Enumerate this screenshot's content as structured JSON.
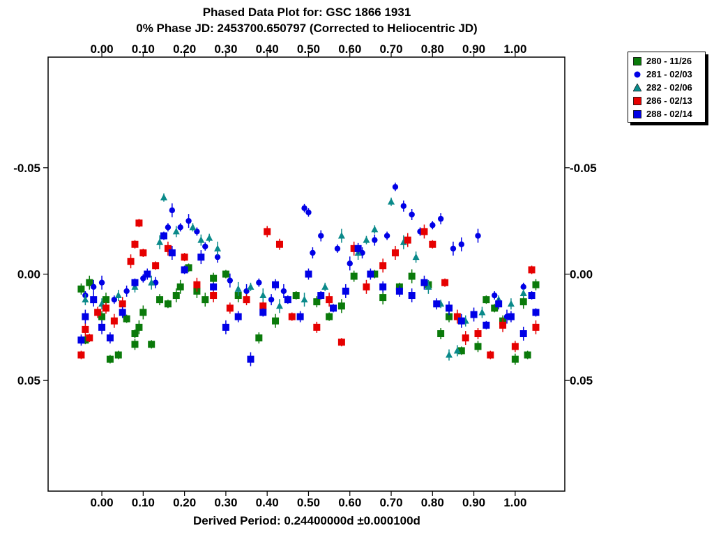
{
  "chart_data": {
    "type": "scatter",
    "title": "Phased Data Plot for: GSC 1866 1931",
    "subtitle": "0% Phase JD:  2453700.650797   (Corrected to Heliocentric JD)",
    "xlabel": "Derived Period: 0.24400000d   ±0.000100d",
    "ylabel": "",
    "x_ticks": [
      "0.00",
      "0.10",
      "0.20",
      "0.30",
      "0.40",
      "0.50",
      "0.60",
      "0.70",
      "0.80",
      "0.90",
      "1.00"
    ],
    "y_ticks": [
      "-0.05",
      "0.00",
      "0.05"
    ],
    "xlim": [
      -0.13,
      1.12
    ],
    "ylim": [
      -0.102,
      0.102
    ],
    "y_inverted": true,
    "grid": false,
    "legend_position": "outside-top-right",
    "series": [
      {
        "name": "280 - 11/26",
        "marker": "square",
        "color": "#0a7a0a",
        "points": [
          [
            -0.05,
            0.007
          ],
          [
            -0.04,
            0.031
          ],
          [
            -0.03,
            0.004
          ],
          [
            0.0,
            0.02
          ],
          [
            0.01,
            0.012
          ],
          [
            0.02,
            0.04
          ],
          [
            0.04,
            0.038
          ],
          [
            0.06,
            0.021
          ],
          [
            0.08,
            0.028
          ],
          [
            0.08,
            0.033
          ],
          [
            0.09,
            0.025
          ],
          [
            0.1,
            0.018
          ],
          [
            0.12,
            0.033
          ],
          [
            0.14,
            0.012
          ],
          [
            0.16,
            0.014
          ],
          [
            0.18,
            0.01
          ],
          [
            0.19,
            0.006
          ],
          [
            0.21,
            -0.003
          ],
          [
            0.23,
            0.008
          ],
          [
            0.25,
            0.012
          ],
          [
            0.27,
            0.002
          ],
          [
            0.3,
            0.0
          ],
          [
            0.33,
            0.01
          ],
          [
            0.38,
            0.03
          ],
          [
            0.42,
            0.022
          ],
          [
            0.47,
            0.01
          ],
          [
            0.52,
            0.013
          ],
          [
            0.55,
            0.02
          ],
          [
            0.58,
            0.015
          ],
          [
            0.61,
            0.001
          ],
          [
            0.66,
            0.0
          ],
          [
            0.68,
            0.011
          ],
          [
            0.72,
            0.006
          ],
          [
            0.75,
            0.001
          ],
          [
            0.79,
            0.005
          ],
          [
            0.82,
            0.028
          ],
          [
            0.84,
            0.02
          ],
          [
            0.87,
            0.036
          ],
          [
            0.91,
            0.034
          ],
          [
            0.93,
            0.012
          ],
          [
            0.95,
            0.016
          ],
          [
            0.97,
            0.022
          ],
          [
            1.0,
            0.04
          ],
          [
            1.02,
            0.013
          ],
          [
            1.03,
            0.038
          ],
          [
            1.05,
            0.005
          ]
        ]
      },
      {
        "name": "281 - 02/03",
        "marker": "circle",
        "color": "#0000e6",
        "points": [
          [
            -0.04,
            0.01
          ],
          [
            -0.02,
            0.006
          ],
          [
            0.0,
            0.004
          ],
          [
            0.03,
            0.012
          ],
          [
            0.06,
            0.008
          ],
          [
            0.1,
            0.002
          ],
          [
            0.13,
            0.004
          ],
          [
            0.16,
            -0.022
          ],
          [
            0.17,
            -0.03
          ],
          [
            0.19,
            -0.022
          ],
          [
            0.21,
            -0.025
          ],
          [
            0.23,
            -0.02
          ],
          [
            0.25,
            -0.013
          ],
          [
            0.28,
            -0.008
          ],
          [
            0.31,
            0.003
          ],
          [
            0.35,
            0.008
          ],
          [
            0.38,
            0.004
          ],
          [
            0.41,
            0.012
          ],
          [
            0.44,
            0.008
          ],
          [
            0.49,
            -0.031
          ],
          [
            0.5,
            -0.029
          ],
          [
            0.51,
            -0.01
          ],
          [
            0.53,
            -0.018
          ],
          [
            0.57,
            -0.012
          ],
          [
            0.6,
            -0.005
          ],
          [
            0.63,
            -0.01
          ],
          [
            0.66,
            -0.016
          ],
          [
            0.69,
            -0.018
          ],
          [
            0.71,
            -0.041
          ],
          [
            0.73,
            -0.032
          ],
          [
            0.75,
            -0.028
          ],
          [
            0.77,
            -0.02
          ],
          [
            0.8,
            -0.023
          ],
          [
            0.82,
            -0.026
          ],
          [
            0.85,
            -0.012
          ],
          [
            0.87,
            -0.014
          ],
          [
            0.91,
            -0.018
          ],
          [
            0.95,
            0.01
          ],
          [
            0.98,
            0.02
          ],
          [
            1.02,
            0.006
          ]
        ]
      },
      {
        "name": "282 - 02/06",
        "marker": "triangle",
        "color": "#0a8a8a",
        "points": [
          [
            -0.04,
            0.012
          ],
          [
            0.0,
            0.014
          ],
          [
            0.04,
            0.01
          ],
          [
            0.08,
            0.006
          ],
          [
            0.12,
            0.004
          ],
          [
            0.14,
            -0.015
          ],
          [
            0.15,
            -0.036
          ],
          [
            0.18,
            -0.02
          ],
          [
            0.22,
            -0.022
          ],
          [
            0.24,
            -0.016
          ],
          [
            0.26,
            -0.017
          ],
          [
            0.28,
            -0.012
          ],
          [
            0.33,
            0.007
          ],
          [
            0.36,
            0.006
          ],
          [
            0.39,
            0.01
          ],
          [
            0.43,
            0.015
          ],
          [
            0.49,
            0.012
          ],
          [
            0.54,
            0.006
          ],
          [
            0.58,
            -0.018
          ],
          [
            0.62,
            -0.01
          ],
          [
            0.64,
            -0.016
          ],
          [
            0.66,
            -0.021
          ],
          [
            0.7,
            -0.034
          ],
          [
            0.73,
            -0.015
          ],
          [
            0.76,
            -0.008
          ],
          [
            0.79,
            0.006
          ],
          [
            0.82,
            0.014
          ],
          [
            0.84,
            0.038
          ],
          [
            0.86,
            0.036
          ],
          [
            0.88,
            0.022
          ],
          [
            0.92,
            0.018
          ],
          [
            0.96,
            0.012
          ],
          [
            0.99,
            0.014
          ],
          [
            1.02,
            0.009
          ]
        ]
      },
      {
        "name": "286 - 02/13",
        "marker": "square",
        "color": "#e60000",
        "points": [
          [
            -0.05,
            0.038
          ],
          [
            -0.04,
            0.026
          ],
          [
            -0.03,
            0.03
          ],
          [
            -0.01,
            0.018
          ],
          [
            0.01,
            0.016
          ],
          [
            0.03,
            0.022
          ],
          [
            0.05,
            0.014
          ],
          [
            0.07,
            -0.006
          ],
          [
            0.08,
            -0.014
          ],
          [
            0.09,
            -0.024
          ],
          [
            0.1,
            -0.01
          ],
          [
            0.13,
            -0.004
          ],
          [
            0.16,
            -0.012
          ],
          [
            0.2,
            -0.008
          ],
          [
            0.23,
            0.005
          ],
          [
            0.27,
            0.01
          ],
          [
            0.31,
            0.016
          ],
          [
            0.35,
            0.012
          ],
          [
            0.39,
            0.015
          ],
          [
            0.4,
            -0.02
          ],
          [
            0.43,
            -0.014
          ],
          [
            0.46,
            0.02
          ],
          [
            0.52,
            0.025
          ],
          [
            0.55,
            0.012
          ],
          [
            0.58,
            0.032
          ],
          [
            0.61,
            -0.012
          ],
          [
            0.64,
            0.006
          ],
          [
            0.68,
            -0.004
          ],
          [
            0.71,
            -0.01
          ],
          [
            0.74,
            -0.016
          ],
          [
            0.78,
            -0.02
          ],
          [
            0.8,
            -0.014
          ],
          [
            0.83,
            0.004
          ],
          [
            0.86,
            0.02
          ],
          [
            0.88,
            0.03
          ],
          [
            0.91,
            0.028
          ],
          [
            0.94,
            0.038
          ],
          [
            0.97,
            0.024
          ],
          [
            1.0,
            0.034
          ],
          [
            1.04,
            -0.002
          ],
          [
            1.05,
            0.025
          ]
        ]
      },
      {
        "name": "288 - 02/14",
        "marker": "square",
        "color": "#0000e6",
        "points": [
          [
            -0.05,
            0.031
          ],
          [
            -0.04,
            0.02
          ],
          [
            -0.02,
            0.012
          ],
          [
            0.0,
            0.025
          ],
          [
            0.02,
            0.03
          ],
          [
            0.05,
            0.018
          ],
          [
            0.08,
            0.004
          ],
          [
            0.11,
            0.0
          ],
          [
            0.15,
            -0.018
          ],
          [
            0.17,
            -0.01
          ],
          [
            0.2,
            -0.002
          ],
          [
            0.24,
            -0.008
          ],
          [
            0.27,
            0.006
          ],
          [
            0.3,
            0.025
          ],
          [
            0.33,
            0.02
          ],
          [
            0.36,
            0.04
          ],
          [
            0.39,
            0.018
          ],
          [
            0.42,
            0.005
          ],
          [
            0.45,
            0.012
          ],
          [
            0.48,
            0.02
          ],
          [
            0.5,
            0.0
          ],
          [
            0.53,
            0.01
          ],
          [
            0.56,
            0.016
          ],
          [
            0.59,
            0.008
          ],
          [
            0.62,
            -0.012
          ],
          [
            0.65,
            0.0
          ],
          [
            0.68,
            0.006
          ],
          [
            0.72,
            0.008
          ],
          [
            0.75,
            0.01
          ],
          [
            0.78,
            0.004
          ],
          [
            0.81,
            0.014
          ],
          [
            0.84,
            0.016
          ],
          [
            0.87,
            0.022
          ],
          [
            0.9,
            0.019
          ],
          [
            0.93,
            0.024
          ],
          [
            0.96,
            0.014
          ],
          [
            0.99,
            0.02
          ],
          [
            1.02,
            0.028
          ],
          [
            1.04,
            0.01
          ],
          [
            1.05,
            0.018
          ]
        ]
      }
    ]
  }
}
